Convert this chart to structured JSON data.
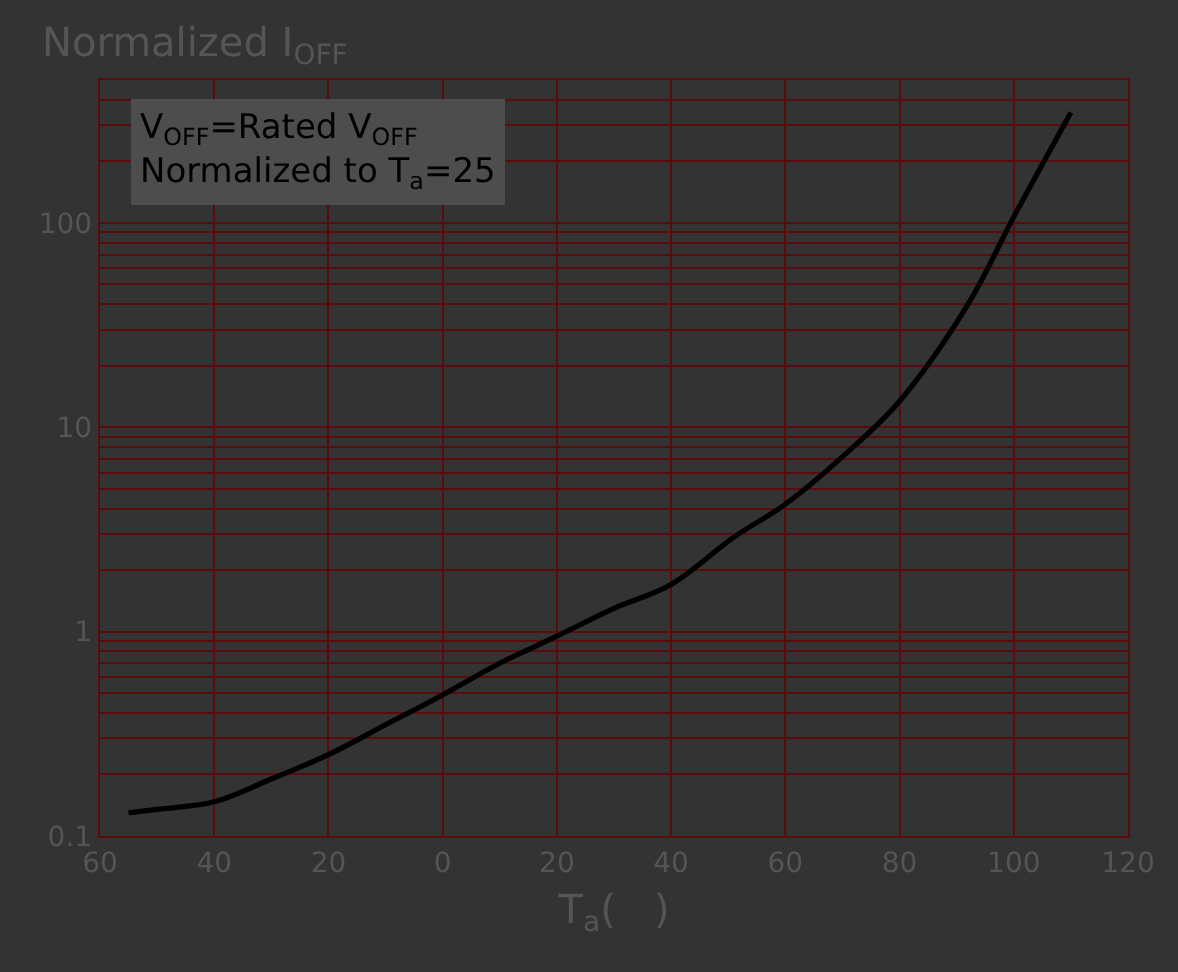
{
  "chart_data": {
    "type": "line",
    "ylabel": "Normalized I$_{OFF}$",
    "xlabel": "T$_{a}$(   )",
    "annotations": [
      "V$_{OFF}$=Rated V$_{OFF}$",
      "Normalized to T$_{a}$=25"
    ],
    "x": [
      -55,
      -50,
      -40,
      -30,
      -20,
      -10,
      0,
      10,
      20,
      30,
      40,
      51,
      60,
      71,
      80,
      92,
      100,
      110
    ],
    "series": [
      {
        "color": "#000000",
        "values": [
          0.13,
          0.135,
          0.147,
          0.19,
          0.25,
          0.35,
          0.49,
          0.7,
          0.95,
          1.3,
          1.7,
          2.9,
          4.2,
          7.6,
          13.4,
          40,
          107,
          347
        ]
      }
    ],
    "log": "y",
    "xlim": [
      -60,
      120
    ],
    "ylim": [
      0.1,
      500
    ],
    "xticks": [
      {
        "value": -60,
        "label": "60"
      },
      {
        "value": -40,
        "label": "40"
      },
      {
        "value": -20,
        "label": "20"
      },
      0,
      20,
      40,
      60,
      80,
      100,
      120
    ],
    "yticks": [
      {
        "value": 0.1,
        "label": "0.1"
      },
      1,
      10,
      100
    ],
    "grid": true,
    "marker": "none",
    "line_style": "solid"
  }
}
